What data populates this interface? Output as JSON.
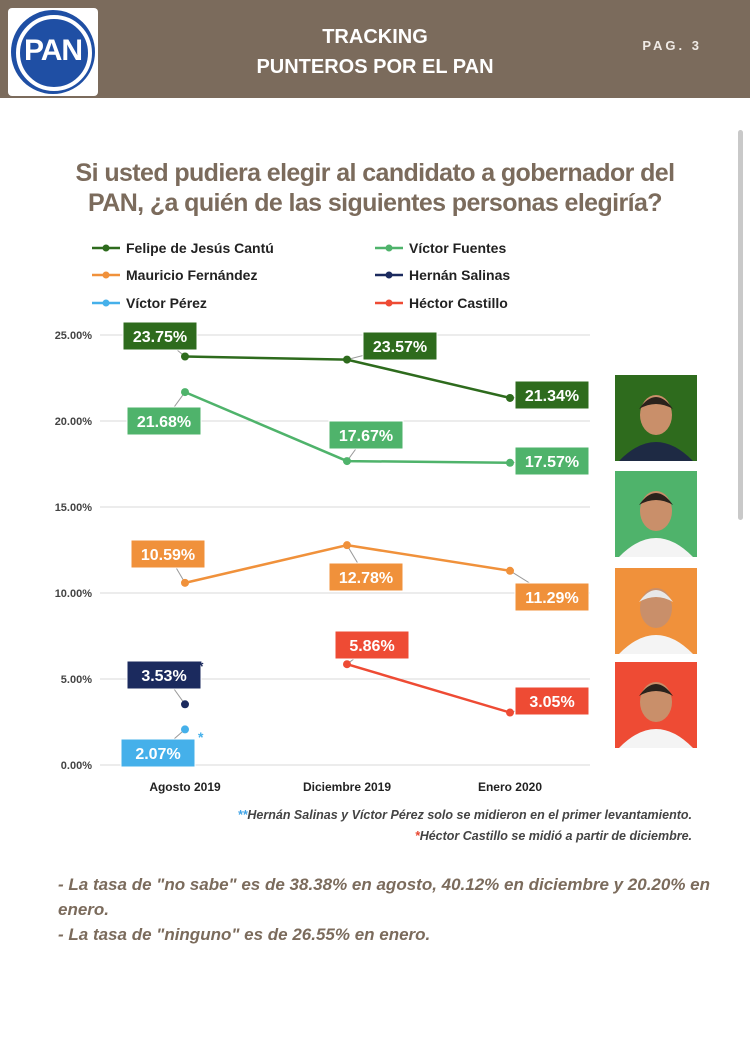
{
  "header": {
    "logo_text": "PAN",
    "title_line1": "TRACKING",
    "title_line2": "PUNTEROS POR EL PAN",
    "page_label": "PAG. 3"
  },
  "question": {
    "line1": "Si usted pudiera elegir al candidato a gobernador del",
    "line2": "PAN, ¿a quién de las siguientes personas elegiría?"
  },
  "chart_data": {
    "type": "line",
    "categories": [
      "Agosto 2019",
      "Diciembre 2019",
      "Enero 2020"
    ],
    "ylim": [
      0,
      25
    ],
    "yticks": [
      "0.00%",
      "5.00%",
      "10.00%",
      "15.00%",
      "20.00%",
      "25.00%"
    ],
    "grid": true,
    "legend_position": "top",
    "series": [
      {
        "name": "Felipe de Jesús Cantú",
        "color": "#2e6b1d",
        "values": [
          23.75,
          23.57,
          21.34
        ],
        "labels": [
          "23.75%",
          "23.57%",
          "21.34%"
        ]
      },
      {
        "name": "Víctor Fuentes",
        "color": "#4fb36b",
        "values": [
          21.68,
          17.67,
          17.57
        ],
        "labels": [
          "21.68%",
          "17.67%",
          "17.57%"
        ]
      },
      {
        "name": "Mauricio Fernández",
        "color": "#f0913b",
        "values": [
          10.59,
          12.78,
          11.29
        ],
        "labels": [
          "10.59%",
          "12.78%",
          "11.29%"
        ]
      },
      {
        "name": "Hernán Salinas",
        "color": "#1b2a5e",
        "values": [
          3.53,
          null,
          null
        ],
        "labels": [
          "3.53%",
          null,
          null
        ]
      },
      {
        "name": "Víctor Pérez",
        "color": "#45b0ea",
        "values": [
          2.07,
          null,
          null
        ],
        "labels": [
          "2.07%",
          null,
          null
        ]
      },
      {
        "name": "Héctor Castillo",
        "color": "#ee4b34",
        "values": [
          null,
          5.86,
          3.05
        ],
        "labels": [
          null,
          "5.86%",
          "3.05%"
        ]
      }
    ],
    "annotations": {
      "asterisk": "*"
    }
  },
  "footnotes": {
    "f1_stars": "**",
    "f1_text": "Hernán Salinas y Víctor Pérez solo se midieron en el primer levantamiento.",
    "f2_star": "*",
    "f2_text": "Héctor Castillo se midió a partir de diciembre."
  },
  "notes": {
    "n1": "- La tasa de \"no sabe\" es de 38.38% en agosto, 40.12% en diciembre y 20.20% en enero.",
    "n2": "- La tasa de \"ninguno\" es de 26.55% en enero."
  },
  "portraits": [
    {
      "name": "portrait-felipe-cantu",
      "bg": "#2e6b1d"
    },
    {
      "name": "portrait-victor-fuentes",
      "bg": "#4fb36b"
    },
    {
      "name": "portrait-mauricio-fernandez",
      "bg": "#f0913b"
    },
    {
      "name": "portrait-hector-castillo",
      "bg": "#ee4b34"
    }
  ]
}
